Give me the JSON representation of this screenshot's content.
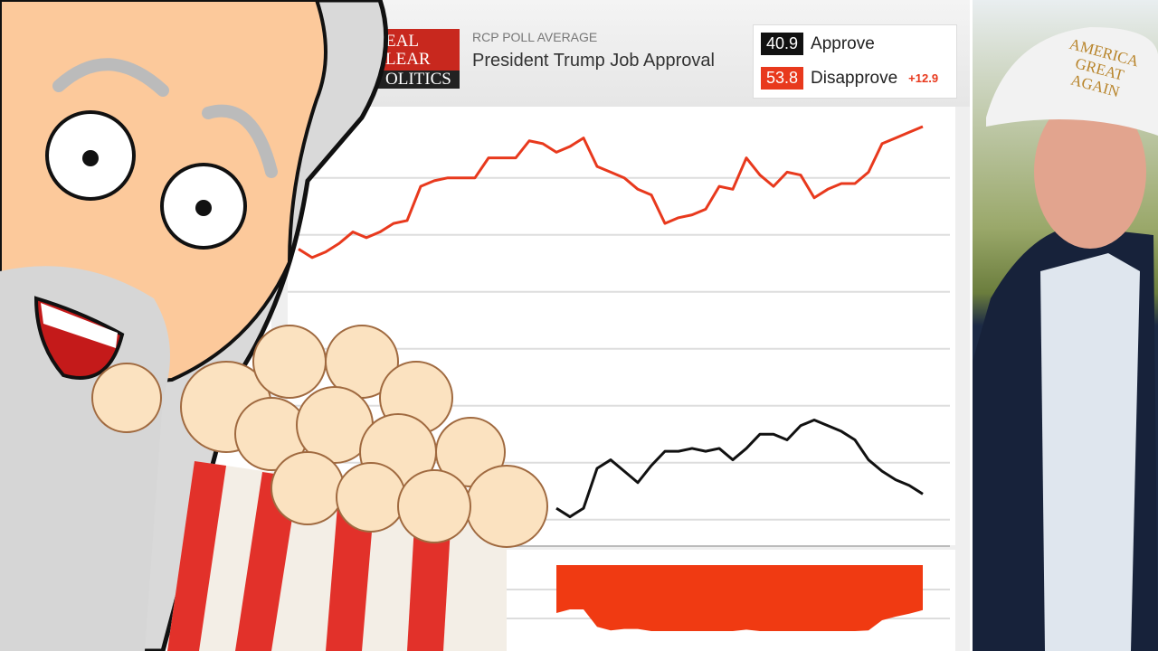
{
  "header": {
    "logo_text": "REAL CLEAR POLITICS",
    "subtitle": "RCP POLL AVERAGE",
    "title": "President Trump Job Approval"
  },
  "legend": {
    "approve_value": "40.9",
    "approve_label": "Approve",
    "disapprove_value": "53.8",
    "disapprove_label": "Disapprove",
    "spread": "+12.9"
  },
  "photo": {
    "hat_text": "AMERICA GREAT AGAIN"
  },
  "colors": {
    "approve": "#111111",
    "disapprove": "#e8391d"
  },
  "chart_data": {
    "type": "line",
    "title": "President Trump Job Approval",
    "grid": true,
    "ylim": [
      39.5,
      54.5
    ],
    "gridlines": [
      52,
      50,
      48,
      46,
      44,
      42,
      40
    ],
    "series": [
      {
        "name": "Disapprove",
        "color": "#e8391d",
        "values": [
          49.5,
          49.2,
          49.4,
          49.7,
          50.1,
          49.9,
          50.1,
          50.4,
          50.5,
          51.7,
          51.9,
          52.0,
          52.0,
          52.0,
          52.7,
          52.7,
          52.7,
          53.3,
          53.2,
          52.9,
          53.1,
          53.4,
          52.4,
          52.2,
          52.0,
          51.6,
          51.4,
          50.4,
          50.6,
          50.7,
          50.9,
          51.7,
          51.6,
          52.7,
          52.1,
          51.7,
          52.2,
          52.1,
          51.3,
          51.6,
          51.8,
          51.8,
          52.2,
          53.2,
          53.4,
          53.6,
          53.8
        ]
      },
      {
        "name": "Approve",
        "color": "#111111",
        "values": [
          null,
          null,
          null,
          null,
          null,
          null,
          null,
          null,
          null,
          null,
          null,
          null,
          null,
          null,
          null,
          null,
          null,
          null,
          null,
          40.4,
          40.1,
          40.4,
          41.8,
          42.1,
          41.7,
          41.3,
          41.9,
          42.4,
          42.4,
          42.5,
          42.4,
          42.5,
          42.1,
          42.5,
          43.0,
          43.0,
          42.8,
          43.3,
          43.5,
          43.3,
          43.1,
          42.8,
          42.1,
          41.7,
          41.4,
          41.2,
          40.9
        ]
      }
    ]
  }
}
